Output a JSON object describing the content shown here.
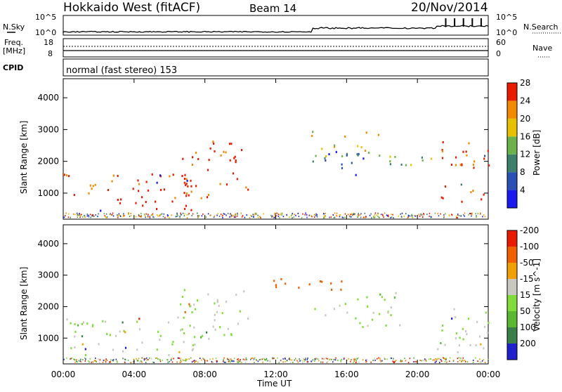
{
  "header": {
    "radar": "Hokkaido West (fitACF)",
    "beam": "Beam 14",
    "date": "20/Nov/2014"
  },
  "noise_panel": {
    "left_label": "N.Sky",
    "right_label": "N.Search",
    "top_tick": "10^5",
    "bottom_tick": "10^0"
  },
  "freq_panel": {
    "left_label_1": "Freq.",
    "left_label_2": "[MHz]",
    "left_ticks": [
      "18",
      "8"
    ],
    "right_label": "Nave",
    "right_ticks": [
      "60",
      "0"
    ]
  },
  "cpid_panel": {
    "label": "CPID",
    "mode": "normal (fast stereo) 153"
  },
  "chart_data": [
    {
      "type": "heatmap",
      "panel": "power",
      "ylabel": "Slant Range [km]",
      "y_ticks": [
        "1000",
        "2000",
        "3000",
        "4000"
      ],
      "colorbar": {
        "label": "Power [dB]",
        "ticks": [
          "4",
          "8",
          "12",
          "16",
          "20",
          "24",
          "28"
        ],
        "colors": [
          "#1a1aee",
          "#2b4fb3",
          "#3d7f6a",
          "#6bb24a",
          "#e6c100",
          "#f08a00",
          "#e81a00"
        ]
      },
      "regions": [
        {
          "t0": 0,
          "t1": 7.5,
          "r0": 400,
          "r1": 1650,
          "level": 28
        },
        {
          "t0": 6.5,
          "t1": 10.5,
          "r0": 800,
          "r1": 2600,
          "level": 28
        },
        {
          "t0": 14,
          "t1": 18,
          "r0": 2100,
          "r1": 2900,
          "level": 20
        },
        {
          "t0": 14,
          "t1": 17,
          "r0": 1500,
          "r1": 2300,
          "level": 8
        },
        {
          "t0": 18,
          "t1": 21.5,
          "r0": 1800,
          "r1": 2300,
          "level": 16
        },
        {
          "t0": 21.3,
          "t1": 24,
          "r0": 600,
          "r1": 2600,
          "level": 28
        }
      ]
    },
    {
      "type": "heatmap",
      "panel": "velocity",
      "xlabel": "Time UT",
      "ylabel": "Slant Range [km]",
      "x_ticks": [
        "00:00",
        "04:00",
        "08:00",
        "12:00",
        "16:00",
        "20:00",
        "00:00"
      ],
      "y_ticks": [
        "1000",
        "2000",
        "3000",
        "4000"
      ],
      "colorbar": {
        "label": "Velocity [m s^-1]",
        "ticks": [
          "200",
          "100",
          "50",
          "15",
          "-15",
          "-50",
          "-100",
          "-200"
        ],
        "colors": [
          "#2020cc",
          "#3a7f4a",
          "#5cb830",
          "#7fdc3a",
          "#c8c8c0",
          "#f0a000",
          "#f06000",
          "#e81a00"
        ]
      },
      "regions": [
        {
          "t0": 0,
          "t1": 8,
          "r0": 400,
          "r1": 1650,
          "level": 0
        },
        {
          "t0": 6.5,
          "t1": 10.5,
          "r0": 800,
          "r1": 2500,
          "level": 0
        },
        {
          "t0": 11.5,
          "t1": 16,
          "r0": 2400,
          "r1": 2900,
          "level": -100
        },
        {
          "t0": 15.5,
          "t1": 19,
          "r0": 2000,
          "r1": 2400,
          "level": 30
        },
        {
          "t0": 14,
          "t1": 19,
          "r0": 1300,
          "r1": 2000,
          "level": 0
        },
        {
          "t0": 21,
          "t1": 24,
          "r0": 500,
          "r1": 2200,
          "level": 0
        }
      ]
    }
  ]
}
